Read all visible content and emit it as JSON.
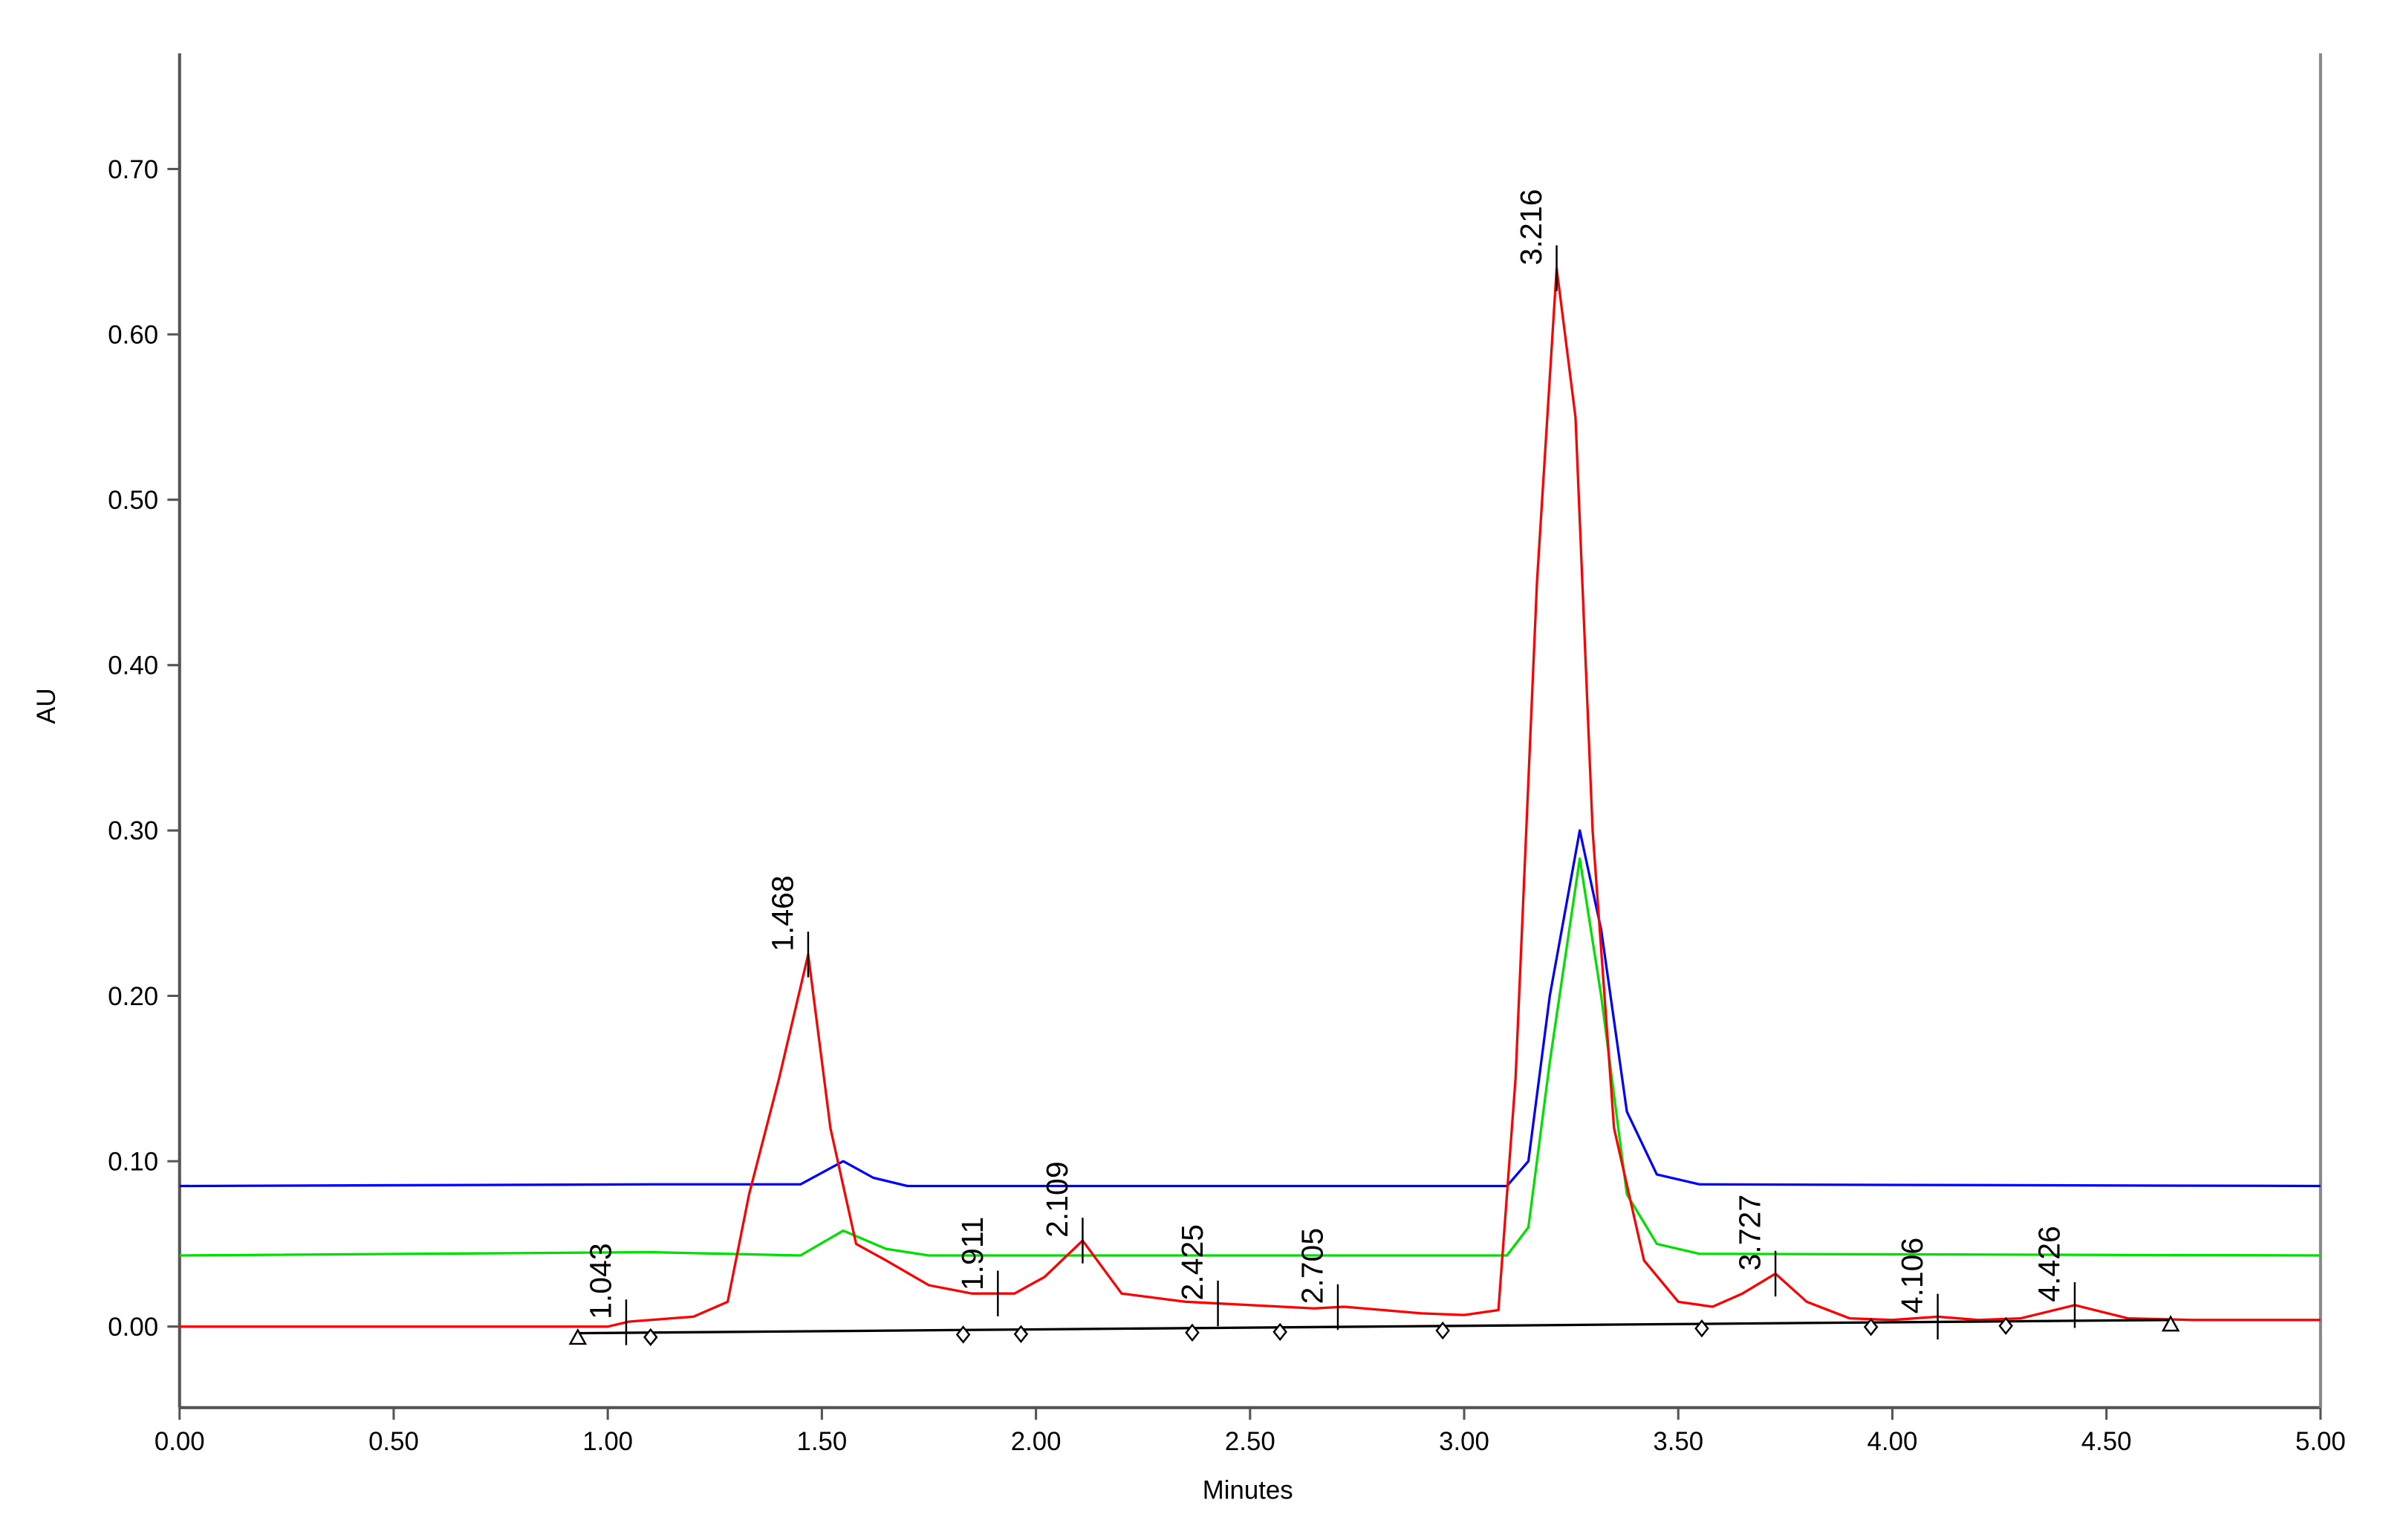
{
  "chart_data": {
    "type": "line",
    "x_label": "Minutes",
    "y_label": "AU",
    "xlim": [
      0,
      5
    ],
    "ylim": [
      -0.049,
      0.77
    ],
    "xticks": [
      {
        "value": 0,
        "label": "0.00"
      },
      {
        "value": 0.5,
        "label": "0.50"
      },
      {
        "value": 1,
        "label": "1.00"
      },
      {
        "value": 1.5,
        "label": "1.50"
      },
      {
        "value": 2,
        "label": "2.00"
      },
      {
        "value": 2.5,
        "label": "2.50"
      },
      {
        "value": 3,
        "label": "3.00"
      },
      {
        "value": 3.5,
        "label": "3.50"
      },
      {
        "value": 4,
        "label": "4.00"
      },
      {
        "value": 4.5,
        "label": "4.50"
      },
      {
        "value": 5,
        "label": "5.00"
      }
    ],
    "yticks": [
      {
        "value": 0,
        "label": "0.00"
      },
      {
        "value": 0.1,
        "label": "0.10"
      },
      {
        "value": 0.2,
        "label": "0.20"
      },
      {
        "value": 0.3,
        "label": "0.30"
      },
      {
        "value": 0.4,
        "label": "0.40"
      },
      {
        "value": 0.5,
        "label": "0.50"
      },
      {
        "value": 0.6,
        "label": "0.60"
      },
      {
        "value": 0.7,
        "label": "0.70"
      }
    ],
    "series": [
      {
        "color": "#0000ff",
        "x": [
          0,
          1.1,
          1.45,
          1.5,
          1.55,
          1.62,
          1.7,
          3.1,
          3.15,
          3.2,
          3.27,
          3.32,
          3.38,
          3.45,
          3.55,
          5
        ],
        "values": [
          0.085,
          0.086,
          0.086,
          0.093,
          0.1,
          0.09,
          0.085,
          0.085,
          0.1,
          0.2,
          0.3,
          0.24,
          0.13,
          0.092,
          0.086,
          0.085
        ]
      },
      {
        "color": "#00e000",
        "x": [
          0,
          1.1,
          1.45,
          1.55,
          1.65,
          1.75,
          3.1,
          3.15,
          3.2,
          3.27,
          3.32,
          3.38,
          3.45,
          3.55,
          5
        ],
        "values": [
          0.043,
          0.045,
          0.043,
          0.058,
          0.047,
          0.043,
          0.043,
          0.06,
          0.16,
          0.283,
          0.2,
          0.08,
          0.05,
          0.044,
          0.043
        ]
      },
      {
        "color": "#ff0000",
        "x": [
          0,
          1.0,
          1.05,
          1.2,
          1.28,
          1.33,
          1.4,
          1.468,
          1.52,
          1.58,
          1.65,
          1.75,
          1.85,
          1.95,
          2.02,
          2.109,
          2.2,
          2.35,
          2.5,
          2.65,
          2.72,
          2.9,
          3.0,
          3.08,
          3.12,
          3.17,
          3.216,
          3.26,
          3.3,
          3.35,
          3.42,
          3.5,
          3.58,
          3.65,
          3.727,
          3.8,
          3.9,
          4.0,
          4.106,
          4.2,
          4.3,
          4.426,
          4.55,
          4.7,
          5.0
        ],
        "values": [
          0,
          0,
          0.003,
          0.006,
          0.015,
          0.08,
          0.15,
          0.225,
          0.12,
          0.05,
          0.04,
          0.025,
          0.02,
          0.02,
          0.03,
          0.052,
          0.02,
          0.015,
          0.013,
          0.011,
          0.012,
          0.008,
          0.007,
          0.01,
          0.15,
          0.45,
          0.64,
          0.55,
          0.3,
          0.12,
          0.04,
          0.015,
          0.012,
          0.02,
          0.032,
          0.015,
          0.005,
          0.004,
          0.006,
          0.004,
          0.005,
          0.013,
          0.005,
          0.004,
          0.004
        ]
      },
      {
        "color": "#000000",
        "x": [
          0.93,
          4.65
        ],
        "values": [
          -0.004,
          0.004
        ]
      }
    ],
    "peak_labels": [
      "1.043",
      "1.468",
      "1.911",
      "2.109",
      "2.425",
      "2.705",
      "3.216",
      "3.727",
      "4.106",
      "4.426"
    ],
    "markers": {
      "x": [
        0.93,
        1.1,
        1.83,
        1.965,
        2.365,
        2.57,
        2.95,
        3.555,
        3.95,
        4.265,
        4.65
      ],
      "shapes": [
        "triangle",
        "diamond",
        "diamond",
        "diamond",
        "diamond",
        "diamond",
        "diamond",
        "diamond",
        "diamond",
        "diamond",
        "triangle"
      ]
    }
  }
}
